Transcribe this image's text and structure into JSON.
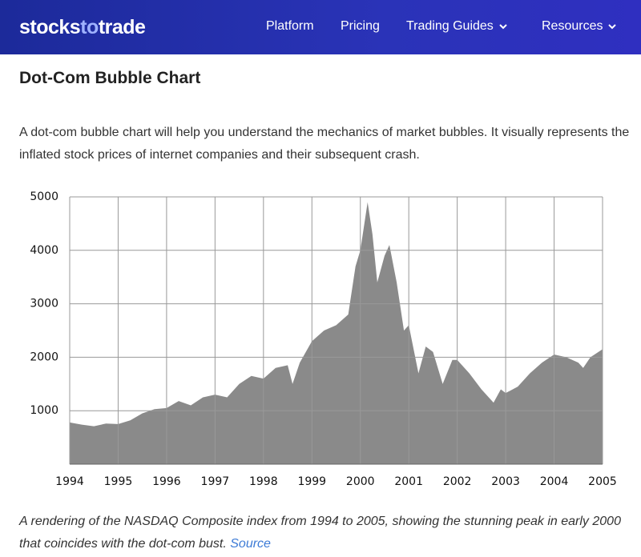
{
  "nav": {
    "logo": [
      "stocks",
      "to",
      "trade"
    ],
    "items": [
      "Platform",
      "Pricing",
      "Trading Guides",
      "Resources"
    ]
  },
  "heading": "Dot-Com Bubble Chart",
  "intro": "A dot-com bubble chart will help you understand the mechanics of market bubbles. It visually represents the inflated stock prices of internet companies and their subsequent crash.",
  "caption": {
    "text": "A rendering of the NASDAQ Composite index from 1994 to 2005, showing the stunning peak in early 2000 that coincides with the dot-com bust.",
    "link": "Source"
  },
  "chart_data": {
    "type": "area",
    "color": "#8a8a8a",
    "grid": true,
    "x": [
      1994.0,
      1994.25,
      1994.5,
      1994.75,
      1995.0,
      1995.25,
      1995.5,
      1995.75,
      1996.0,
      1996.25,
      1996.5,
      1996.75,
      1997.0,
      1997.25,
      1997.5,
      1997.75,
      1998.0,
      1998.25,
      1998.5,
      1998.6,
      1998.75,
      1999.0,
      1999.25,
      1999.5,
      1999.75,
      1999.9,
      2000.0,
      2000.15,
      2000.25,
      2000.35,
      2000.5,
      2000.6,
      2000.75,
      2000.9,
      2001.0,
      2001.2,
      2001.35,
      2001.5,
      2001.7,
      2001.9,
      2002.0,
      2002.25,
      2002.5,
      2002.75,
      2002.9,
      2003.0,
      2003.25,
      2003.5,
      2003.75,
      2004.0,
      2004.25,
      2004.5,
      2004.6,
      2004.75,
      2005.0
    ],
    "values": [
      780,
      740,
      710,
      760,
      750,
      820,
      950,
      1030,
      1050,
      1180,
      1100,
      1250,
      1300,
      1250,
      1500,
      1650,
      1600,
      1800,
      1850,
      1500,
      1900,
      2300,
      2500,
      2600,
      2800,
      3700,
      4000,
      4900,
      4300,
      3400,
      3900,
      4100,
      3400,
      2500,
      2600,
      1700,
      2200,
      2100,
      1500,
      1950,
      1950,
      1700,
      1400,
      1150,
      1400,
      1330,
      1450,
      1700,
      1900,
      2050,
      2000,
      1900,
      1800,
      2000,
      2150
    ],
    "xlim": [
      1994,
      2005
    ],
    "xticks": [
      1994,
      1995,
      1996,
      1997,
      1998,
      1999,
      2000,
      2001,
      2002,
      2003,
      2004,
      2005
    ],
    "ylim": [
      0,
      5000
    ],
    "yticks": [
      1000,
      2000,
      3000,
      4000,
      5000
    ]
  }
}
